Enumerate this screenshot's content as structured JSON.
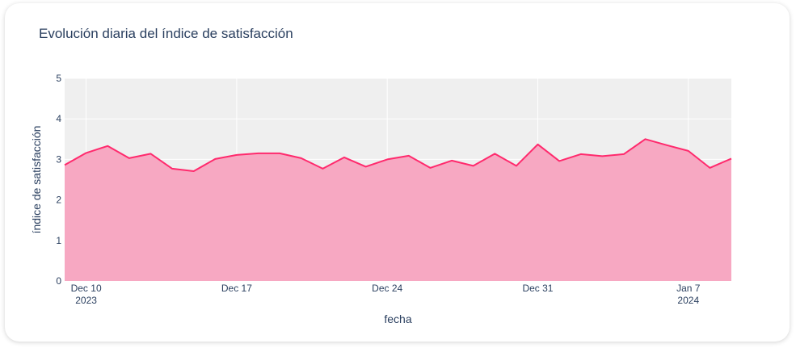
{
  "chart_data": {
    "type": "area",
    "title": "Evolución diaria del índice de satisfacción",
    "xlabel": "fecha",
    "ylabel": "índice de satisfacción",
    "ylim": [
      0,
      5
    ],
    "yticks": [
      "0",
      "1",
      "2",
      "3",
      "4",
      "5"
    ],
    "xlim": [
      "2023-12-09",
      "2024-01-09"
    ],
    "xticks": [
      {
        "date": "2023-12-10",
        "label": "Dec 10",
        "sub": "2023"
      },
      {
        "date": "2023-12-17",
        "label": "Dec 17",
        "sub": ""
      },
      {
        "date": "2023-12-24",
        "label": "Dec 24",
        "sub": ""
      },
      {
        "date": "2023-12-31",
        "label": "Dec 31",
        "sub": ""
      },
      {
        "date": "2024-01-07",
        "label": "Jan 7",
        "sub": "2024"
      }
    ],
    "line_color": "#ff2a6d",
    "fill_color": "#f7a8c2",
    "plot_bg": "#efefef",
    "grid": true,
    "x": [
      "2023-12-09",
      "2023-12-10",
      "2023-12-11",
      "2023-12-12",
      "2023-12-13",
      "2023-12-14",
      "2023-12-15",
      "2023-12-16",
      "2023-12-17",
      "2023-12-18",
      "2023-12-19",
      "2023-12-20",
      "2023-12-21",
      "2023-12-22",
      "2023-12-23",
      "2023-12-24",
      "2023-12-25",
      "2023-12-26",
      "2023-12-27",
      "2023-12-28",
      "2023-12-29",
      "2023-12-30",
      "2023-12-31",
      "2024-01-01",
      "2024-01-02",
      "2024-01-03",
      "2024-01-04",
      "2024-01-05",
      "2024-01-06",
      "2024-01-07",
      "2024-01-08",
      "2024-01-09"
    ],
    "values": [
      2.86,
      3.16,
      3.33,
      3.03,
      3.14,
      2.77,
      2.71,
      3.01,
      3.11,
      3.15,
      3.15,
      3.03,
      2.77,
      3.05,
      2.82,
      3.0,
      3.09,
      2.79,
      2.97,
      2.84,
      3.14,
      2.84,
      3.37,
      2.96,
      3.13,
      3.08,
      3.13,
      3.5,
      3.35,
      3.21,
      2.79,
      3.02
    ]
  }
}
